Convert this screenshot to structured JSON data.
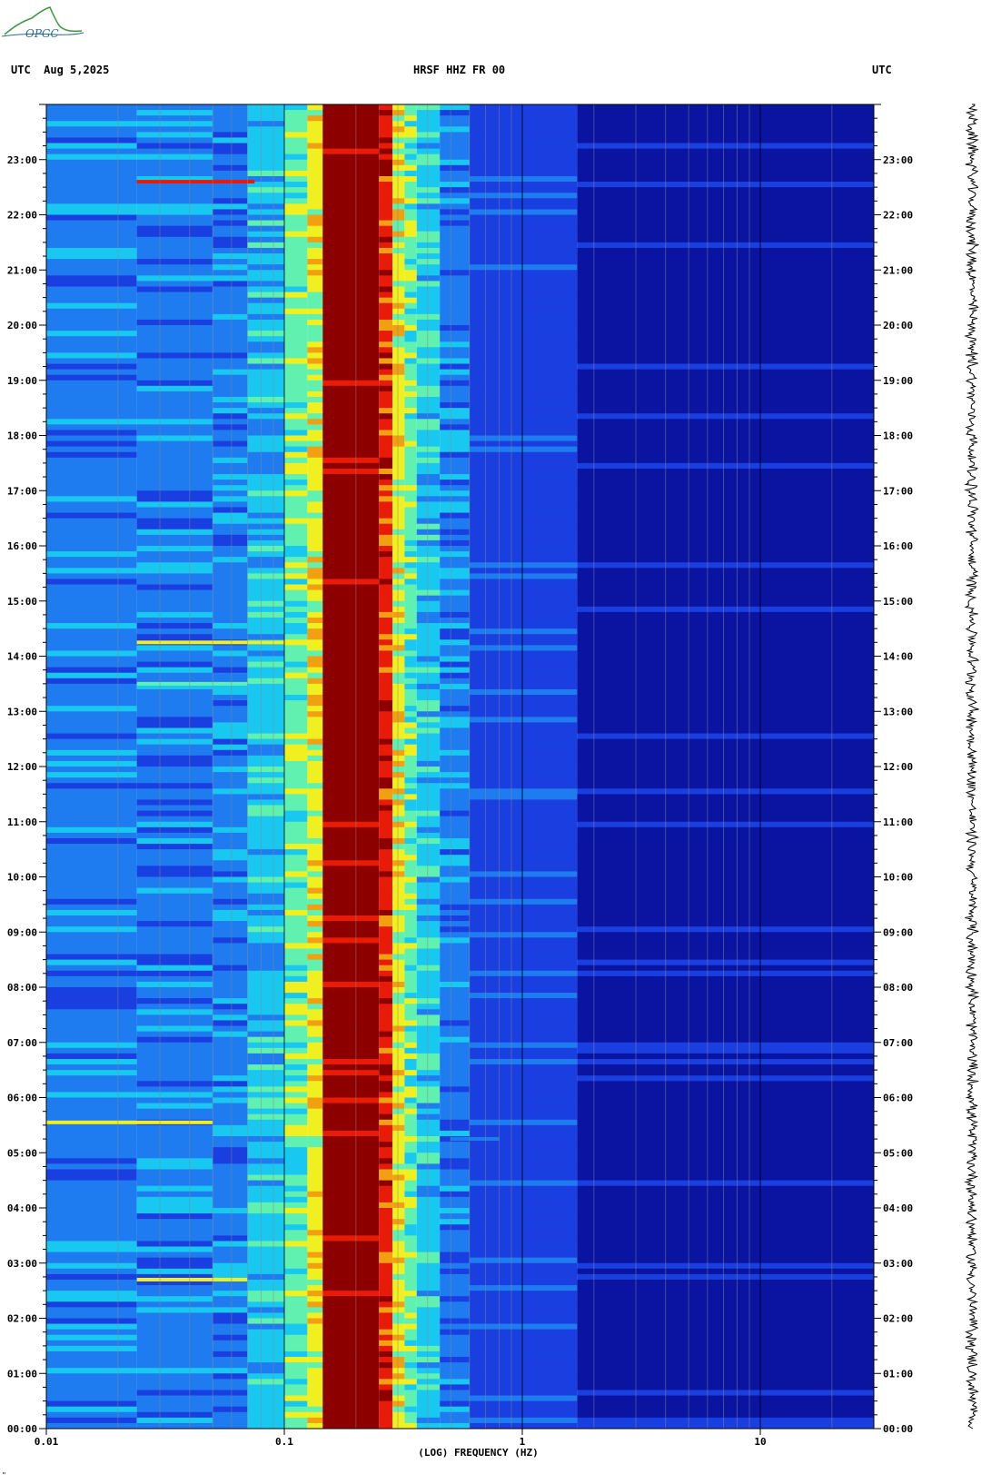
{
  "logo": {
    "text": "OPGC"
  },
  "header": {
    "left": "UTC  Aug 5,2025",
    "center": "HRSF HHZ FR 00",
    "right": "UTC"
  },
  "chart_data": {
    "type": "heatmap",
    "title": "HRSF HHZ FR 00",
    "date": "Aug 5,2025",
    "timezone": "UTC",
    "xlabel": "(LOG) FREQUENCY (HZ)",
    "x_scale": "log",
    "xlim": [
      0.01,
      30
    ],
    "x_tick_labels": [
      "0.01",
      "0.1",
      "1",
      "10"
    ],
    "x_tick_values": [
      0.01,
      0.1,
      1,
      10
    ],
    "ylim_hours": [
      0,
      24
    ],
    "y_tick_labels": [
      "00:00",
      "01:00",
      "02:00",
      "03:00",
      "04:00",
      "05:00",
      "06:00",
      "07:00",
      "08:00",
      "09:00",
      "10:00",
      "11:00",
      "12:00",
      "13:00",
      "14:00",
      "15:00",
      "16:00",
      "17:00",
      "18:00",
      "19:00",
      "20:00",
      "21:00",
      "22:00",
      "23:00"
    ],
    "colormap": [
      "#0a14a0",
      "#1a3fe0",
      "#1e7cf0",
      "#18c8f0",
      "#60f0b0",
      "#f0f020",
      "#f0a010",
      "#e81a08",
      "#8c0000"
    ],
    "frequency_bands": [
      {
        "f_low": 0.01,
        "f_high": 0.024,
        "level": 2
      },
      {
        "f_low": 0.024,
        "f_high": 0.05,
        "level": 2
      },
      {
        "f_low": 0.05,
        "f_high": 0.07,
        "level": 2
      },
      {
        "f_low": 0.07,
        "f_high": 0.1,
        "level": 3
      },
      {
        "f_low": 0.1,
        "f_high": 0.125,
        "level": 4
      },
      {
        "f_low": 0.125,
        "f_high": 0.145,
        "level": 5
      },
      {
        "f_low": 0.145,
        "f_high": 0.25,
        "level": 8
      },
      {
        "f_low": 0.25,
        "f_high": 0.285,
        "level": 7
      },
      {
        "f_low": 0.285,
        "f_high": 0.32,
        "level": 5
      },
      {
        "f_low": 0.32,
        "f_high": 0.36,
        "level": 4
      },
      {
        "f_low": 0.36,
        "f_high": 0.45,
        "level": 3
      },
      {
        "f_low": 0.45,
        "f_high": 0.6,
        "level": 2
      },
      {
        "f_low": 0.6,
        "f_high": 1.7,
        "level": 1
      },
      {
        "f_low": 1.7,
        "f_high": 30,
        "level": 0
      }
    ],
    "events": [
      {
        "time_hours": 22.6,
        "f_low": 0.024,
        "f_high": 0.075,
        "level": 7
      },
      {
        "time_hours": 14.25,
        "f_low": 0.024,
        "f_high": 0.1,
        "level": 5
      },
      {
        "time_hours": 13.5,
        "f_low": 0.024,
        "f_high": 0.07,
        "level": 4
      },
      {
        "time_hours": 5.55,
        "f_low": 0.01,
        "f_high": 0.05,
        "level": 5
      },
      {
        "time_hours": 2.7,
        "f_low": 0.024,
        "f_high": 0.07,
        "level": 5
      },
      {
        "time_hours": 5.25,
        "f_low": 0.5,
        "f_high": 0.8,
        "level": 2
      }
    ]
  },
  "footer": {
    "corner_mark": "\""
  }
}
